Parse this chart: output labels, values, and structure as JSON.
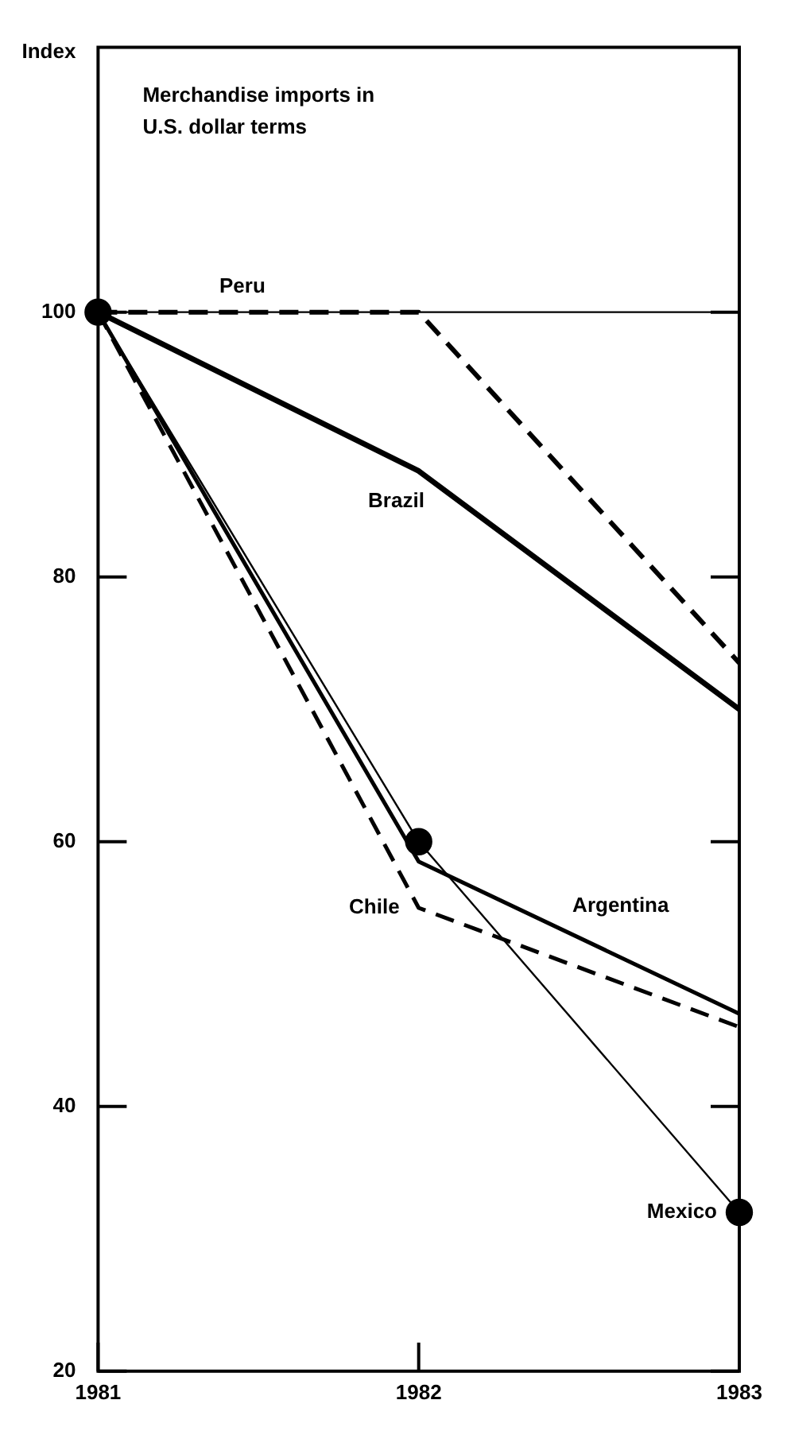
{
  "chart_data": {
    "type": "line",
    "title": "Merchandise imports in U.S. dollar terms",
    "ylabel": "Index",
    "categories": [
      "1981",
      "1982",
      "1983"
    ],
    "series": [
      {
        "name": "Peru",
        "color": "#000000",
        "values": [
          100,
          100,
          73.5
        ],
        "line_style": "dashed",
        "marker": "none"
      },
      {
        "name": "Brazil",
        "color": "#000000",
        "values": [
          100,
          88,
          70
        ],
        "line_style": "solid",
        "marker": "none"
      },
      {
        "name": "Chile",
        "color": "#000000",
        "values": [
          100,
          55,
          46
        ],
        "line_style": "dashed",
        "marker": "none"
      },
      {
        "name": "Argentina",
        "color": "#000000",
        "values": [
          100,
          58.5,
          47
        ],
        "line_style": "solid",
        "marker": "none"
      },
      {
        "name": "Mexico",
        "color": "#000000",
        "values": [
          100,
          60,
          32
        ],
        "line_style": "solid",
        "marker": "circle"
      }
    ],
    "ylim": [
      20,
      120
    ],
    "yticks": [
      20,
      40,
      60,
      80,
      100
    ],
    "ref_lines": [
      {
        "axis": "y",
        "value": 100,
        "color": "#000000",
        "line_style": "solid"
      }
    ],
    "grid": false,
    "legend": false
  }
}
